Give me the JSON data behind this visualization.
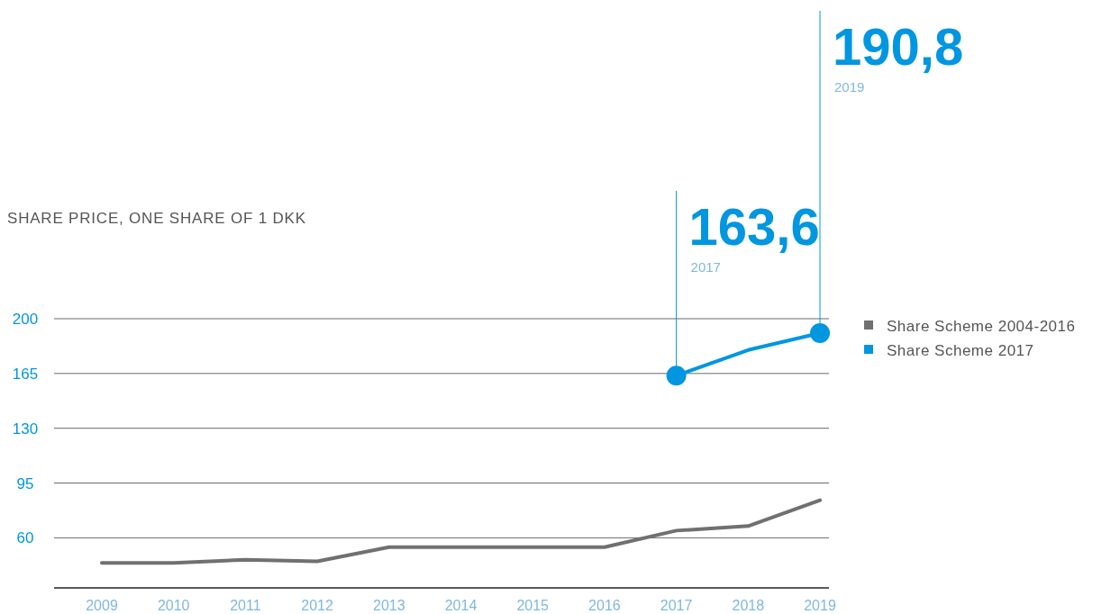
{
  "chart_data": {
    "type": "line",
    "title": "SHARE PRICE, ONE SHARE OF 1 DKK",
    "categories": [
      "2009",
      "2010",
      "2011",
      "2012",
      "2013",
      "2014",
      "2015",
      "2016",
      "2017",
      "2018",
      "2019"
    ],
    "series": [
      {
        "name": "Share Scheme 2004-2016",
        "color": "#707070",
        "values": [
          44,
          44,
          46,
          45,
          54,
          54,
          54,
          54,
          64.6,
          67.5,
          84
        ]
      },
      {
        "name": "Share Scheme 2017",
        "color": "#0096e0",
        "values": [
          null,
          null,
          null,
          null,
          null,
          null,
          null,
          null,
          163.6,
          180,
          190.8
        ],
        "value_labels": [
          null,
          null,
          null,
          null,
          null,
          null,
          null,
          null,
          "163,6",
          null,
          "190,8"
        ]
      }
    ],
    "annotations": [
      "2017",
      "2019"
    ],
    "ylim": [
      28,
      200
    ],
    "yticks": [
      60,
      95,
      130,
      165,
      200
    ],
    "grid": "y",
    "legend": "right"
  }
}
